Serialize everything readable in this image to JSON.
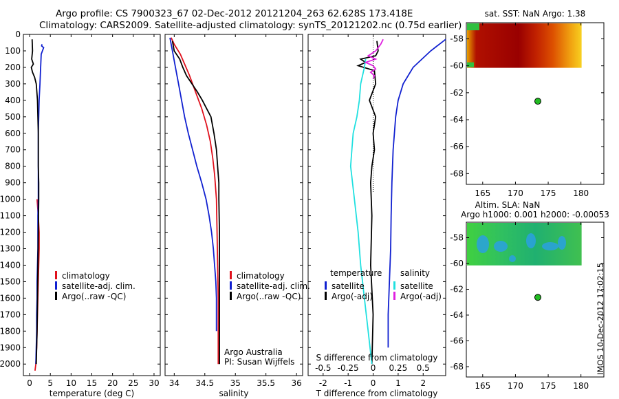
{
  "header": {
    "title_line1": "Argo profile: CS 7900323_67 02-Dec-2012 20121204_263 62.628S 173.418E",
    "title_line2": "Climatology: CARS2009. Satellite-adjusted climatology: synTS_20121202.nc (0.75d earlier)"
  },
  "footer": {
    "stamp": "IMOS 10-Dec-2012 17:02:15"
  },
  "colors": {
    "climatology": "#e0101c",
    "satellite": "#1020d0",
    "argo": "#000000",
    "s_satellite": "#20e0e0",
    "s_argo": "#e020e0",
    "float_marker": "#22bb22"
  },
  "chart_data": [
    {
      "type": "line",
      "name": "temperature-panel",
      "xlabel": "temperature (deg C)",
      "ylabel": "",
      "xlim": [
        -1.5,
        31.5
      ],
      "ylim": [
        2070,
        0
      ],
      "y_reversed": true,
      "xticks": [
        0,
        5,
        10,
        15,
        20,
        25,
        30
      ],
      "yticks": [
        0,
        100,
        200,
        300,
        400,
        500,
        600,
        700,
        800,
        900,
        1000,
        1100,
        1200,
        1300,
        1400,
        1500,
        1600,
        1700,
        1800,
        1900,
        2000
      ],
      "legend": {
        "placement": "lower-right",
        "entries": [
          "climatology",
          "satellite-adj. clim.",
          "Argo(..raw -QC)"
        ]
      },
      "series": [
        {
          "name": "climatology",
          "color": "#e0101c",
          "x": [
            1.8,
            2.1,
            2.3,
            2.3,
            2.2,
            2.1,
            2.0,
            1.9,
            1.8,
            1.7,
            1.6,
            1.5,
            1.3
          ],
          "y": [
            1000,
            1100,
            1200,
            1300,
            1400,
            1500,
            1600,
            1700,
            1800,
            1900,
            1950,
            2000,
            2040
          ]
        },
        {
          "name": "satellite-adj. clim.",
          "color": "#1020d0",
          "x": [
            3.0,
            2.9,
            3.4,
            2.8,
            2.5,
            2.3,
            2.1,
            2.1,
            2.1,
            2.0,
            2.0,
            2.0,
            1.9,
            1.8,
            1.8,
            1.7,
            1.7,
            1.6,
            1.5
          ],
          "y": [
            60,
            70,
            80,
            120,
            300,
            400,
            600,
            800,
            1000,
            1100,
            1200,
            1300,
            1400,
            1500,
            1600,
            1700,
            1800,
            1900,
            2000
          ]
        },
        {
          "name": "Argo(..raw -QC)",
          "color": "#000000",
          "x": [
            0.6,
            0.7,
            0.5,
            0.9,
            0.4,
            0.7,
            1.2,
            1.6,
            1.9,
            2.0,
            2.1,
            2.1,
            2.2,
            2.2,
            2.1,
            2.0,
            1.9,
            1.8,
            1.7,
            1.6
          ],
          "y": [
            30,
            100,
            150,
            180,
            200,
            230,
            260,
            300,
            400,
            500,
            600,
            800,
            900,
            1000,
            1200,
            1400,
            1600,
            1800,
            1900,
            2000
          ]
        }
      ]
    },
    {
      "type": "line",
      "name": "salinity-panel",
      "xlabel": "salinity",
      "ylabel": "",
      "xlim": [
        33.85,
        36.1
      ],
      "ylim": [
        2070,
        0
      ],
      "y_reversed": true,
      "xticks": [
        34,
        34.5,
        35,
        35.5,
        36
      ],
      "legend": {
        "placement": "lower-right",
        "entries": [
          "climatology",
          "satellite-adj. clim.",
          "Argo(..raw -QC)"
        ]
      },
      "annotations": [
        "Argo Australia",
        "PI: Susan Wijffels"
      ],
      "series": [
        {
          "name": "climatology",
          "color": "#e0101c",
          "x": [
            33.95,
            34.0,
            34.1,
            34.17,
            34.25,
            34.35,
            34.45,
            34.53,
            34.59,
            34.63,
            34.66,
            34.69,
            34.7,
            34.71,
            34.72,
            34.72,
            34.72
          ],
          "y": [
            20,
            60,
            120,
            180,
            250,
            350,
            450,
            550,
            650,
            750,
            850,
            1000,
            1200,
            1400,
            1600,
            1800,
            2000
          ]
        },
        {
          "name": "satellite-adj. clim.",
          "color": "#1020d0",
          "x": [
            33.93,
            33.97,
            34.02,
            34.07,
            34.12,
            34.17,
            34.23,
            34.3,
            34.37,
            34.45,
            34.52,
            34.57,
            34.61,
            34.64,
            34.66,
            34.68,
            34.69,
            34.69
          ],
          "y": [
            20,
            100,
            200,
            300,
            400,
            500,
            600,
            700,
            800,
            900,
            1000,
            1100,
            1200,
            1300,
            1400,
            1500,
            1600,
            1800
          ]
        },
        {
          "name": "Argo(..raw -QC)",
          "color": "#000000",
          "x": [
            33.97,
            34.0,
            34.09,
            34.14,
            34.2,
            34.29,
            34.38,
            34.46,
            34.53,
            34.6,
            34.65,
            34.69,
            34.71,
            34.73,
            34.73,
            34.74,
            34.74,
            34.74
          ],
          "y": [
            40,
            100,
            150,
            200,
            250,
            300,
            350,
            400,
            450,
            500,
            600,
            700,
            800,
            900,
            1000,
            1200,
            1500,
            2000
          ]
        }
      ]
    },
    {
      "type": "line",
      "name": "difference-panel",
      "xlabel": "T difference from climatology",
      "x2label": "S difference from climatology",
      "xlim": [
        -2.6,
        2.9
      ],
      "ylim": [
        2070,
        0
      ],
      "y_reversed": true,
      "xticks": [
        -2,
        -1,
        0,
        1,
        2
      ],
      "x2ticks": [
        "-0.5",
        "-0.25",
        "0",
        "0.25",
        "0.5"
      ],
      "legend": {
        "placement": "lower-center",
        "groups": [
          {
            "title": "temperature",
            "entries": [
              "satellite",
              "Argo(-adj)"
            ]
          },
          {
            "title": "salinity",
            "entries": [
              "satellite",
              "Argo(-adj)"
            ]
          }
        ]
      },
      "series": [
        {
          "name": "temperature satellite",
          "color": "#1020d0",
          "x": [
            2.9,
            2.3,
            1.6,
            1.2,
            1.0,
            0.9,
            0.8,
            0.75,
            0.72,
            0.7,
            0.65,
            0.6,
            0.6
          ],
          "y": [
            30,
            100,
            200,
            300,
            400,
            500,
            700,
            900,
            1100,
            1300,
            1500,
            1700,
            1900
          ]
        },
        {
          "name": "temperature Argo(-adj)",
          "color": "#000000",
          "x": [
            0.15,
            0.2,
            0.1,
            -0.5,
            -0.3,
            -0.6,
            0.05,
            0.1,
            -0.15,
            0.1,
            0.0,
            0.05,
            -0.05,
            -0.1,
            -0.05,
            -0.1,
            0.0,
            -0.05
          ],
          "y": [
            40,
            100,
            130,
            150,
            170,
            190,
            220,
            300,
            400,
            500,
            600,
            700,
            800,
            900,
            1100,
            1400,
            1700,
            2000
          ]
        },
        {
          "name": "salinity satellite",
          "color": "#20e0e0",
          "x": [
            -0.3,
            -0.35,
            -0.5,
            -0.55,
            -0.65,
            -0.8,
            -0.85,
            -0.9,
            -0.75,
            -0.6,
            -0.5,
            -0.35,
            -0.2,
            -0.05
          ],
          "y": [
            150,
            200,
            300,
            400,
            500,
            600,
            700,
            800,
            1000,
            1200,
            1400,
            1600,
            1800,
            2000
          ]
        },
        {
          "name": "salinity Argo(-adj)",
          "color": "#e020e0",
          "x": [
            0.4,
            0.3,
            0.1,
            -0.2,
            0.1,
            -0.3,
            0.0,
            0.1,
            -0.1,
            0.05,
            0.0
          ],
          "y": [
            30,
            60,
            100,
            130,
            150,
            170,
            190,
            210,
            230,
            250,
            270
          ]
        }
      ]
    },
    {
      "type": "heatmap",
      "name": "sst-map",
      "title": "sat. SST: NaN Argo: 1.38",
      "xlim": [
        162.5,
        183.5
      ],
      "ylim": [
        -68.8,
        -56.8
      ],
      "xticks": [
        165,
        170,
        175,
        180
      ],
      "yticks": [
        -58,
        -60,
        -62,
        -64,
        -66,
        -68
      ],
      "float_position": {
        "lon": 173.418,
        "lat": -62.628
      }
    },
    {
      "type": "heatmap",
      "name": "sla-map",
      "title": "Altim. SLA: NaN",
      "subtitle": "Argo h1000: 0.001 h2000: -0.00053",
      "xlim": [
        162.5,
        183.5
      ],
      "ylim": [
        -68.8,
        -56.8
      ],
      "xticks": [
        165,
        170,
        175,
        180
      ],
      "yticks": [
        -58,
        -60,
        -62,
        -64,
        -66,
        -68
      ],
      "float_position": {
        "lon": 173.418,
        "lat": -62.628
      }
    }
  ]
}
